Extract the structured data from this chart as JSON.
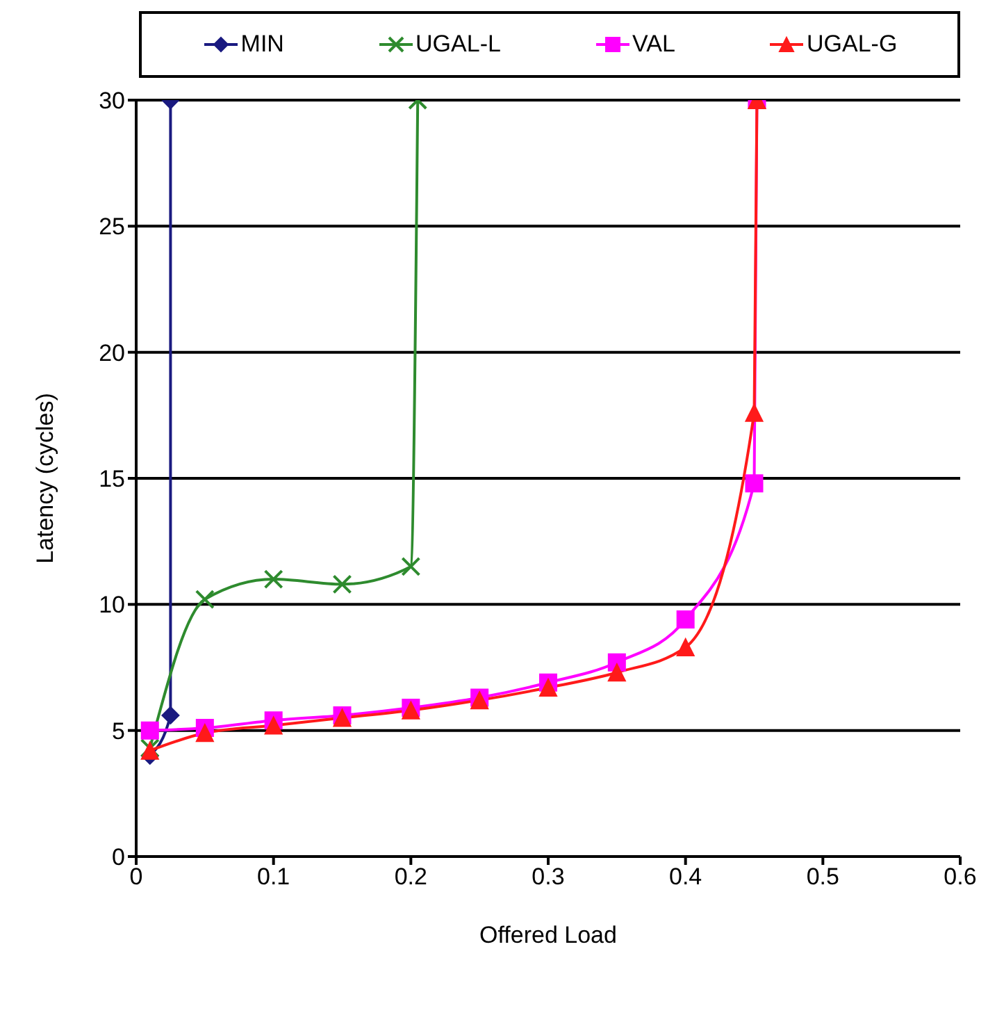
{
  "chart_data": {
    "type": "line",
    "xlabel": "Offered Load",
    "ylabel": "Latency (cycles)",
    "xlim": [
      0,
      0.6
    ],
    "xticks": [
      0,
      0.1,
      0.2,
      0.3,
      0.4,
      0.5,
      0.6
    ],
    "ylim": [
      0,
      30
    ],
    "yticks": [
      0,
      5,
      10,
      15,
      20,
      25,
      30
    ],
    "grid": "y",
    "legend": "top",
    "series": [
      {
        "name": "MIN",
        "color": "#1a1a80",
        "marker": "diamond",
        "x": [
          0.01,
          0.025,
          0.025
        ],
        "values": [
          4.0,
          5.6,
          30
        ]
      },
      {
        "name": "UGAL-L",
        "color": "#2e8b2e",
        "marker": "cross",
        "x": [
          0.01,
          0.05,
          0.1,
          0.15,
          0.2,
          0.205
        ],
        "values": [
          4.3,
          10.2,
          11.0,
          10.8,
          11.5,
          30
        ]
      },
      {
        "name": "VAL",
        "color": "#ff00ff",
        "marker": "square",
        "x": [
          0.01,
          0.05,
          0.1,
          0.15,
          0.2,
          0.25,
          0.3,
          0.35,
          0.4,
          0.45,
          0.452
        ],
        "values": [
          5.0,
          5.1,
          5.4,
          5.6,
          5.9,
          6.3,
          6.9,
          7.7,
          9.4,
          14.8,
          30
        ]
      },
      {
        "name": "UGAL-G",
        "color": "#ff1a1a",
        "marker": "triangle",
        "x": [
          0.01,
          0.05,
          0.1,
          0.15,
          0.2,
          0.25,
          0.3,
          0.35,
          0.4,
          0.45,
          0.452
        ],
        "values": [
          4.2,
          4.9,
          5.2,
          5.5,
          5.8,
          6.2,
          6.7,
          7.3,
          8.3,
          17.6,
          30
        ]
      }
    ]
  }
}
